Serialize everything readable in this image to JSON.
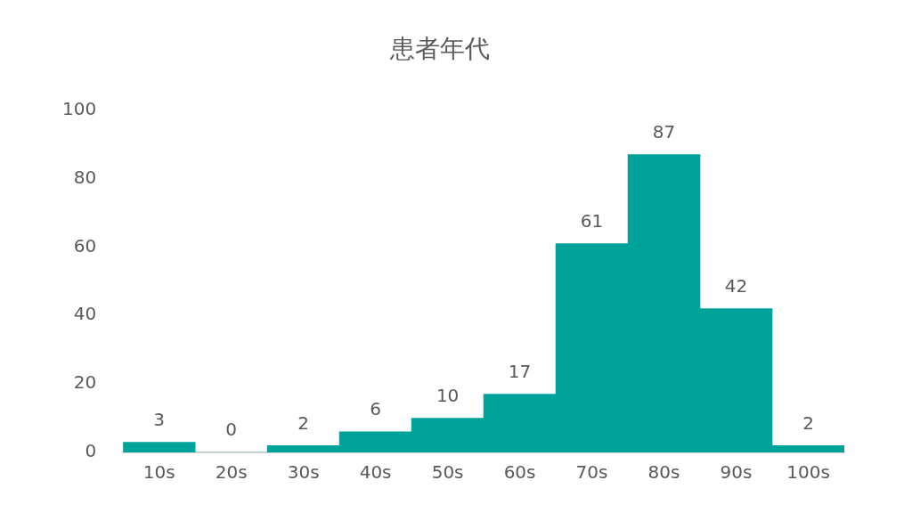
{
  "chart_data": {
    "type": "bar",
    "title": "患者年代",
    "categories": [
      "10s",
      "20s",
      "30s",
      "40s",
      "50s",
      "60s",
      "70s",
      "80s",
      "90s",
      "100s"
    ],
    "values": [
      3,
      0,
      2,
      6,
      10,
      17,
      61,
      87,
      42,
      2
    ],
    "color": "#00a39a",
    "ylim": [
      0,
      100
    ],
    "yticks": [
      0,
      20,
      40,
      60,
      80,
      100
    ],
    "grid": false,
    "legend": false,
    "data_labels": true
  }
}
